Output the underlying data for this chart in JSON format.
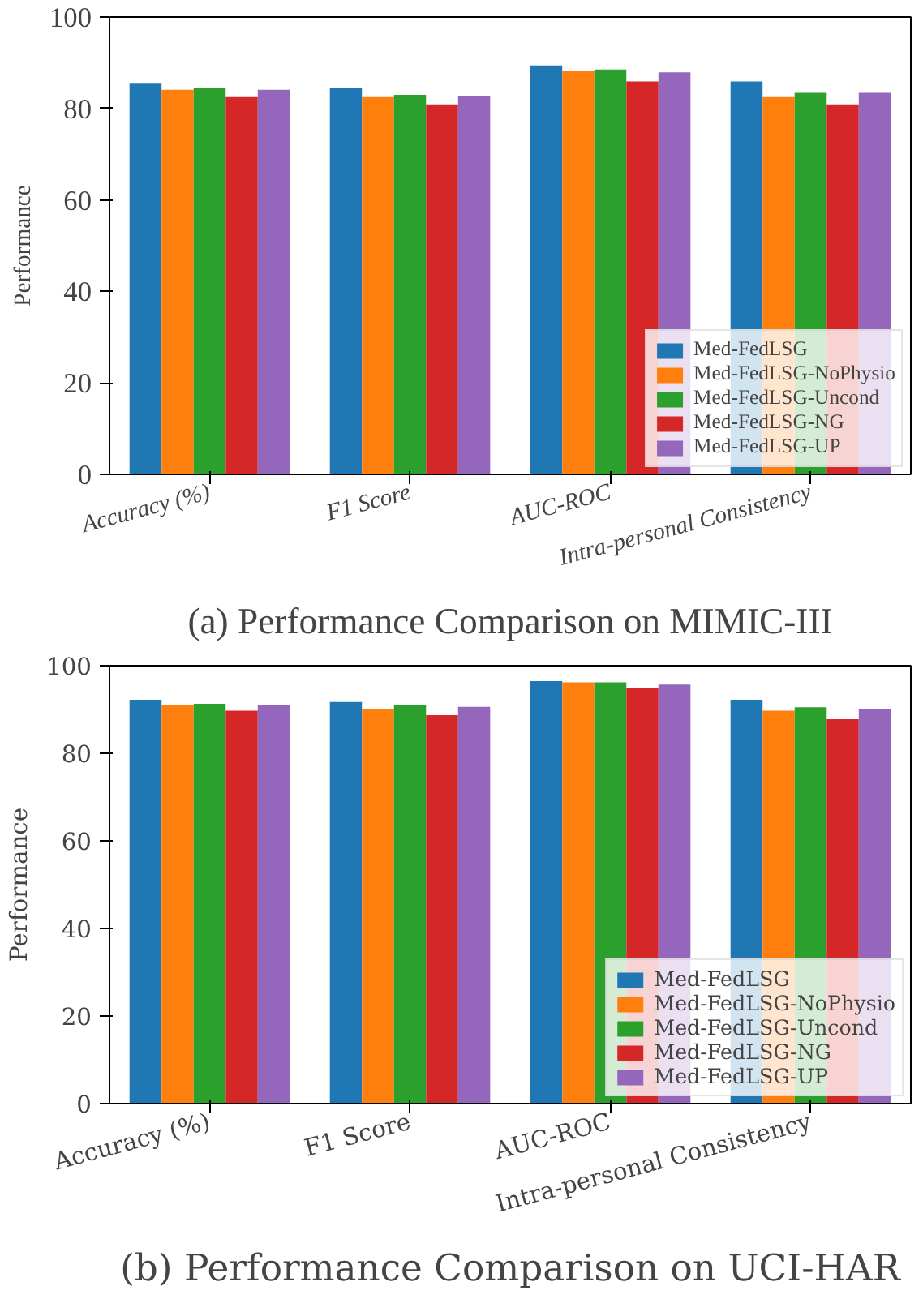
{
  "chart_data": [
    {
      "type": "bar",
      "title": "(a) Performance Comparison on MIMIC-III",
      "ylabel": "Performance",
      "categories": [
        "Accuracy (%)",
        "F1 Score",
        "AUC-ROC",
        "Intra-personal Consistency"
      ],
      "ylim": [
        0,
        100
      ],
      "yticks": [
        0,
        20,
        40,
        60,
        80,
        100
      ],
      "grid": false,
      "legend": "bottom right",
      "series": [
        {
          "name": "Med-FedLSG",
          "color": "#1f77b4",
          "values": [
            85.6,
            84.4,
            89.4,
            85.9
          ]
        },
        {
          "name": "Med-FedLSG-NoPhysio",
          "color": "#ff7f0e",
          "values": [
            84.1,
            82.5,
            88.2,
            82.5
          ]
        },
        {
          "name": "Med-FedLSG-Uncond",
          "color": "#2ca02c",
          "values": [
            84.4,
            83.0,
            88.5,
            83.4
          ]
        },
        {
          "name": "Med-FedLSG-NG",
          "color": "#d62728",
          "values": [
            82.5,
            80.9,
            85.9,
            80.9
          ]
        },
        {
          "name": "Med-FedLSG-UP",
          "color": "#9467bd",
          "values": [
            84.1,
            82.7,
            87.9,
            83.4
          ]
        }
      ]
    },
    {
      "type": "bar",
      "title": "(b) Performance Comparison on UCI-HAR",
      "ylabel": "Performance",
      "categories": [
        "Accuracy (%)",
        "F1 Score",
        "AUC-ROC",
        "Intra-personal Consistency"
      ],
      "ylim": [
        0,
        100
      ],
      "yticks": [
        0,
        20,
        40,
        60,
        80,
        100
      ],
      "grid": false,
      "legend": "bottom right",
      "series": [
        {
          "name": "Med-FedLSG",
          "color": "#1f77b4",
          "values": [
            92.2,
            91.7,
            96.5,
            92.2
          ]
        },
        {
          "name": "Med-FedLSG-NoPhysio",
          "color": "#ff7f0e",
          "values": [
            91.0,
            90.2,
            96.2,
            89.7
          ]
        },
        {
          "name": "Med-FedLSG-Uncond",
          "color": "#2ca02c",
          "values": [
            91.3,
            91.0,
            96.2,
            90.5
          ]
        },
        {
          "name": "Med-FedLSG-NG",
          "color": "#d62728",
          "values": [
            89.7,
            88.7,
            94.9,
            87.8
          ]
        },
        {
          "name": "Med-FedLSG-UP",
          "color": "#9467bd",
          "values": [
            91.0,
            90.6,
            95.7,
            90.2
          ]
        }
      ]
    }
  ]
}
